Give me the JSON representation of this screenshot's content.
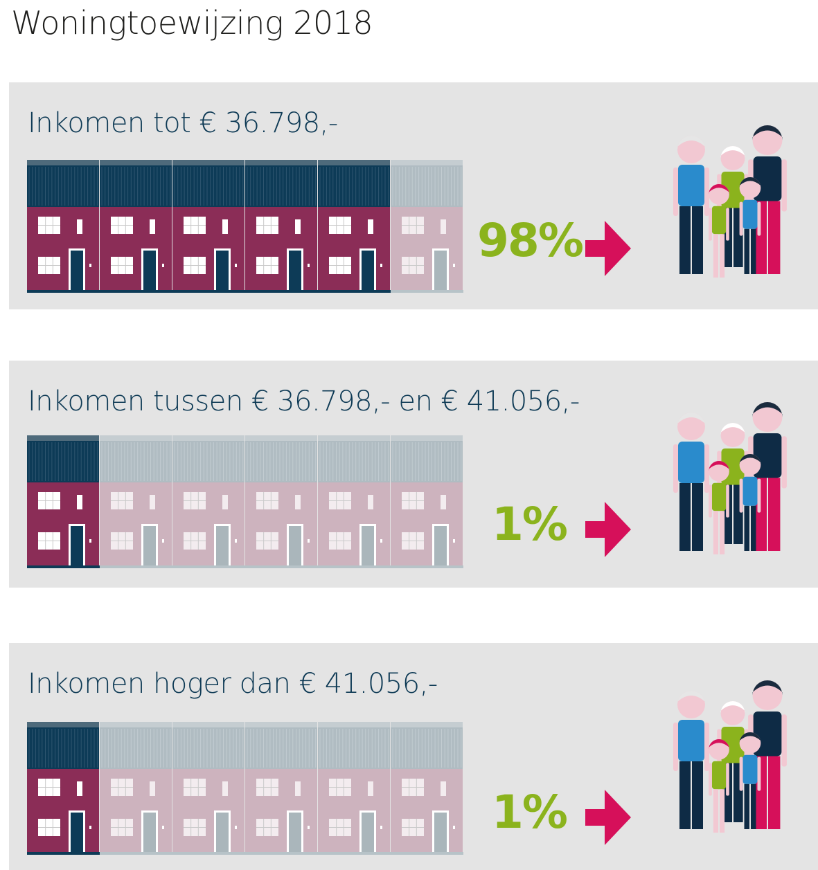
{
  "title": "Woningtoewijzing 2018",
  "colors": {
    "house_active": "#8b2d57",
    "roof_active": "#0d3b57",
    "house_inactive": "#cdb3be",
    "roof_inactive": "#b0bcc2",
    "percentage": "#8bb31d",
    "arrow": "#d6105a",
    "panel_bg": "#e4e4e4"
  },
  "chart_data": {
    "type": "pictogram",
    "houses_per_row": 6,
    "categories": [
      "Inkomen tot € 36.798,-",
      "Inkomen tussen € 36.798,- en € 41.056,-",
      "Inkomen hoger dan € 41.056,-"
    ],
    "series": [
      {
        "values": [
          98,
          1,
          1
        ]
      }
    ],
    "rows": [
      {
        "label": "Inkomen tot € 36.798,-",
        "value": 98,
        "display": "98%",
        "active_houses": 5,
        "icons": [
          "house-icon",
          "family-icon",
          "arrow-right-icon"
        ]
      },
      {
        "label": "Inkomen tussen € 36.798,- en € 41.056,-",
        "value": 1,
        "display": "1%",
        "active_houses": 1,
        "icons": [
          "house-icon",
          "family-icon",
          "arrow-right-icon"
        ]
      },
      {
        "label": "Inkomen hoger dan € 41.056,-",
        "value": 1,
        "display": "1%",
        "active_houses": 1,
        "icons": [
          "house-icon",
          "family-icon",
          "arrow-right-icon"
        ]
      }
    ]
  }
}
